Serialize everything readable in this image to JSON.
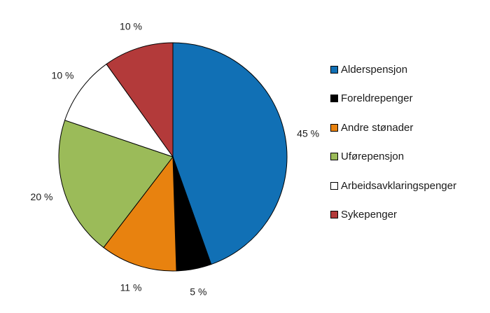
{
  "chart_data": {
    "type": "pie",
    "title": "",
    "legend_position": "right",
    "slices": [
      {
        "name": "Alderspensjon",
        "value": 45,
        "label": "45 %",
        "color": "#1170b5"
      },
      {
        "name": "Foreldrepenger",
        "value": 5,
        "label": "5 %",
        "color": "#000000"
      },
      {
        "name": "Andre stønader",
        "value": 11,
        "label": "11 %",
        "color": "#e8820f"
      },
      {
        "name": "Uførepensjon",
        "value": 20,
        "label": "20 %",
        "color": "#9bbb59"
      },
      {
        "name": "Arbeidsavklaringspenger",
        "value": 10,
        "label": "10 %",
        "color": "#ffffff"
      },
      {
        "name": "Sykepenger",
        "value": 10,
        "label": "10 %",
        "color": "#b33a3a"
      }
    ]
  }
}
